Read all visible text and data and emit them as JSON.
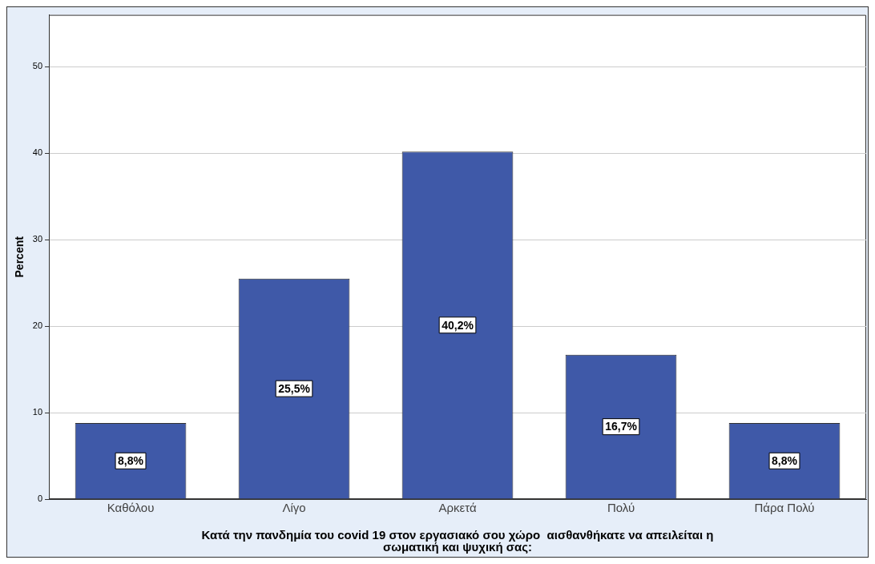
{
  "chart_data": {
    "type": "bar",
    "xlabel": "Κατά την πανδημία του covid 19 στον εργασιακό σου χώρο  αισθανθήκατε να απειλείται η σωματική και ψυχική σας:",
    "ylabel": "Percent",
    "categories": [
      "Καθόλου",
      "Λίγο",
      "Αρκετά",
      "Πολύ",
      "Πάρα Πολύ"
    ],
    "values": [
      8.8,
      25.5,
      40.2,
      16.7,
      8.8
    ],
    "value_labels": [
      "8,8%",
      "25,5%",
      "40,2%",
      "16,7%",
      "8,8%"
    ],
    "color": "#3f59a8",
    "ylim": [
      0,
      56
    ],
    "yticks": [
      0,
      10,
      20,
      30,
      40,
      50
    ],
    "grid": "y",
    "legend": false
  }
}
